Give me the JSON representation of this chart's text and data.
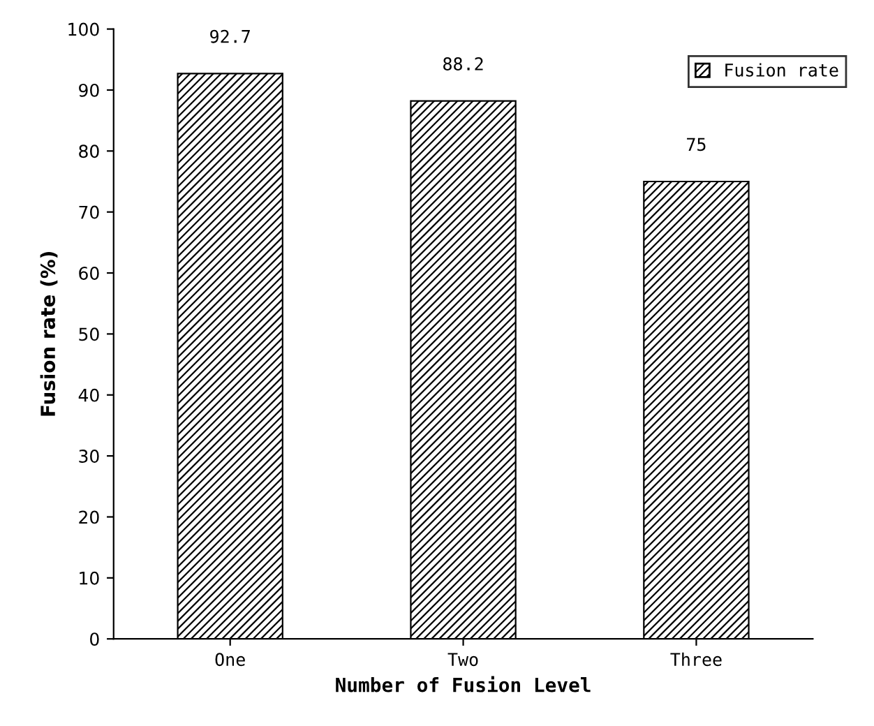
{
  "chart_data": {
    "type": "bar",
    "xlabel": "Number of Fusion Level",
    "ylabel": "Fusion rate (%)",
    "categories": [
      "One",
      "Two",
      "Three"
    ],
    "series": [
      {
        "name": "Fusion rate",
        "color": "#000000",
        "values": [
          92.7,
          88.2,
          75
        ]
      }
    ],
    "ylim": [
      0,
      100
    ],
    "yticks": [
      0,
      10,
      20,
      30,
      40,
      50,
      60,
      70,
      80,
      90,
      100
    ],
    "data_labels": true,
    "legend": "top right",
    "grid": false
  }
}
